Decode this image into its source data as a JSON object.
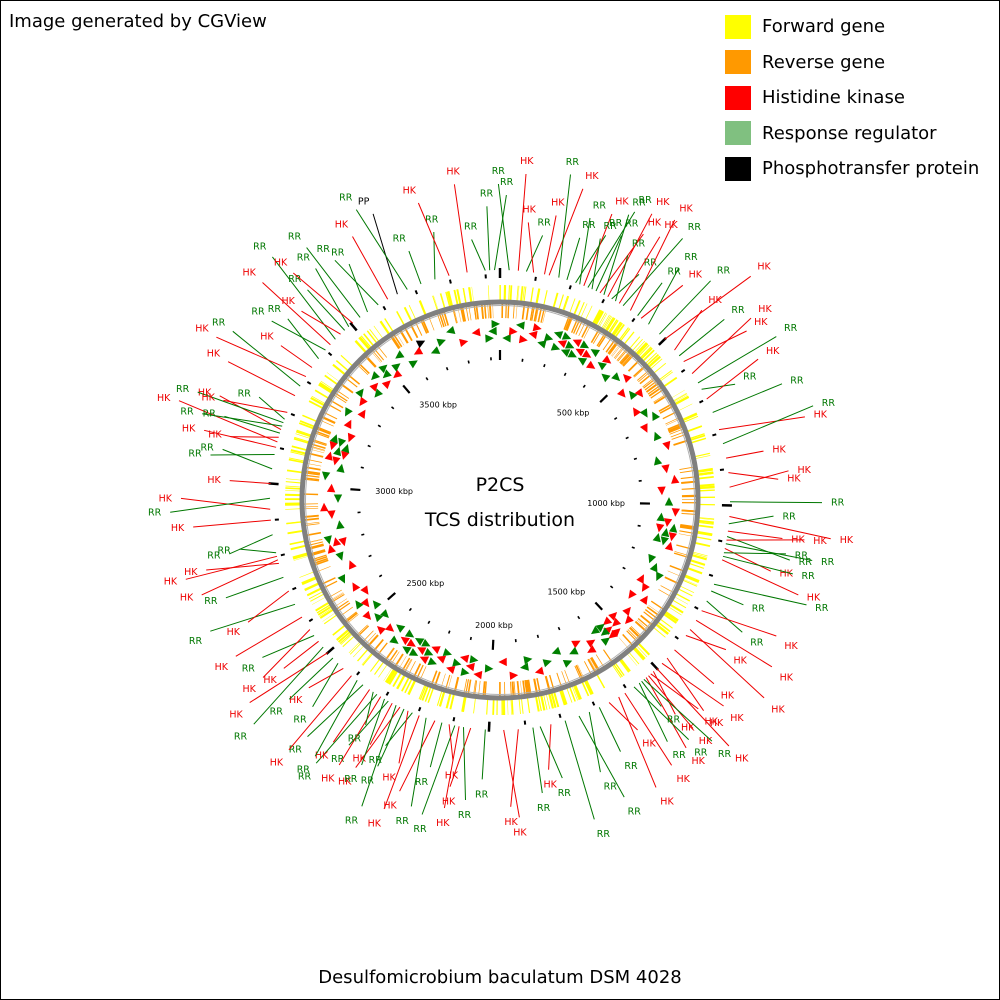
{
  "credit": "Image generated by CGView",
  "title": "Desulfomicrobium baculatum DSM 4028",
  "center": {
    "line1": "P2CS",
    "line2": "TCS distribution"
  },
  "legend": [
    {
      "label": "Forward gene",
      "color": "#ffff00"
    },
    {
      "label": "Reverse gene",
      "color": "#ff9900"
    },
    {
      "label": "Histidine kinase",
      "color": "#ff0000"
    },
    {
      "label": "Response regulator",
      "color": "#80c080"
    },
    {
      "label": "Phosphotransfer protein",
      "color": "#000000"
    }
  ],
  "label_colors": {
    "HK": "#ee0000",
    "RR": "#007700",
    "PP": "#000000"
  },
  "track_colors": {
    "forward": "#ffff00",
    "reverse": "#ff9900",
    "backbone": "#808080",
    "hk": "#ff0000",
    "rr": "#008000",
    "pp": "#000000"
  },
  "genome_kbp": 3940,
  "scale_ticks": [
    {
      "kbp": 500,
      "label": "500 kbp"
    },
    {
      "kbp": 1000,
      "label": "1000 kbp"
    },
    {
      "kbp": 1500,
      "label": "1500 kbp"
    },
    {
      "kbp": 2000,
      "label": "2000 kbp"
    },
    {
      "kbp": 2500,
      "label": "2500 kbp"
    },
    {
      "kbp": 3000,
      "label": "3000 kbp"
    },
    {
      "kbp": 3500,
      "label": "3500 kbp"
    }
  ],
  "features": [
    {
      "kbp": 3900,
      "type": "RR"
    },
    {
      "kbp": 3912,
      "type": "RR"
    },
    {
      "kbp": 3925,
      "type": "RR"
    },
    {
      "kbp": 25,
      "type": "RR"
    },
    {
      "kbp": 50,
      "type": "HK"
    },
    {
      "kbp": 72,
      "type": "RR"
    },
    {
      "kbp": 92,
      "type": "HK"
    },
    {
      "kbp": 122,
      "type": "HK"
    },
    {
      "kbp": 135,
      "type": "HK"
    },
    {
      "kbp": 162,
      "type": "RR"
    },
    {
      "kbp": 185,
      "type": "RR"
    },
    {
      "kbp": 210,
      "type": "RR"
    },
    {
      "kbp": 222,
      "type": "RR"
    },
    {
      "kbp": 234,
      "type": "HK"
    },
    {
      "kbp": 246,
      "type": "RR"
    },
    {
      "kbp": 258,
      "type": "RR"
    },
    {
      "kbp": 270,
      "type": "RR"
    },
    {
      "kbp": 282,
      "type": "HK"
    },
    {
      "kbp": 294,
      "type": "RR"
    },
    {
      "kbp": 306,
      "type": "HK"
    },
    {
      "kbp": 318,
      "type": "RR"
    },
    {
      "kbp": 330,
      "type": "RR"
    },
    {
      "kbp": 342,
      "type": "HK"
    },
    {
      "kbp": 354,
      "type": "RR"
    },
    {
      "kbp": 378,
      "type": "HK"
    },
    {
      "kbp": 402,
      "type": "RR"
    },
    {
      "kbp": 414,
      "type": "HK"
    },
    {
      "kbp": 440,
      "type": "RR"
    },
    {
      "kbp": 480,
      "type": "RR"
    },
    {
      "kbp": 500,
      "type": "HK"
    },
    {
      "kbp": 540,
      "type": "HK"
    },
    {
      "kbp": 560,
      "type": "RR"
    },
    {
      "kbp": 580,
      "type": "HK"
    },
    {
      "kbp": 620,
      "type": "HK"
    },
    {
      "kbp": 650,
      "type": "RR"
    },
    {
      "kbp": 670,
      "type": "RR"
    },
    {
      "kbp": 700,
      "type": "HK"
    },
    {
      "kbp": 740,
      "type": "RR"
    },
    {
      "kbp": 790,
      "type": "HK"
    },
    {
      "kbp": 830,
      "type": "RR"
    },
    {
      "kbp": 870,
      "type": "HK"
    },
    {
      "kbp": 910,
      "type": "HK"
    },
    {
      "kbp": 950,
      "type": "HK"
    },
    {
      "kbp": 990,
      "type": "RR"
    },
    {
      "kbp": 1030,
      "type": "HK"
    },
    {
      "kbp": 1050,
      "type": "RR"
    },
    {
      "kbp": 1070,
      "type": "HK"
    },
    {
      "kbp": 1085,
      "type": "RR"
    },
    {
      "kbp": 1095,
      "type": "HK"
    },
    {
      "kbp": 1105,
      "type": "RR"
    },
    {
      "kbp": 1118,
      "type": "HK"
    },
    {
      "kbp": 1130,
      "type": "RR"
    },
    {
      "kbp": 1140,
      "type": "RR"
    },
    {
      "kbp": 1150,
      "type": "HK"
    },
    {
      "kbp": 1220,
      "type": "RR"
    },
    {
      "kbp": 1240,
      "type": "RR"
    },
    {
      "kbp": 1270,
      "type": "RR"
    },
    {
      "kbp": 1300,
      "type": "HK"
    },
    {
      "kbp": 1330,
      "type": "HK"
    },
    {
      "kbp": 1360,
      "type": "HK"
    },
    {
      "kbp": 1380,
      "type": "HK"
    },
    {
      "kbp": 1430,
      "type": "HK"
    },
    {
      "kbp": 1460,
      "type": "HK"
    },
    {
      "kbp": 1480,
      "type": "HK"
    },
    {
      "kbp": 1500,
      "type": "HK"
    },
    {
      "kbp": 1512,
      "type": "HK"
    },
    {
      "kbp": 1522,
      "type": "HK"
    },
    {
      "kbp": 1530,
      "type": "HK"
    },
    {
      "kbp": 1538,
      "type": "HK"
    },
    {
      "kbp": 1546,
      "type": "RR"
    },
    {
      "kbp": 1554,
      "type": "RR"
    },
    {
      "kbp": 1562,
      "type": "RR"
    },
    {
      "kbp": 1580,
      "type": "RR"
    },
    {
      "kbp": 1610,
      "type": "HK"
    },
    {
      "kbp": 1630,
      "type": "HK"
    },
    {
      "kbp": 1660,
      "type": "HK"
    },
    {
      "kbp": 1690,
      "type": "RR"
    },
    {
      "kbp": 1720,
      "type": "RR"
    },
    {
      "kbp": 1750,
      "type": "RR"
    },
    {
      "kbp": 1790,
      "type": "RR"
    },
    {
      "kbp": 1830,
      "type": "HK"
    },
    {
      "kbp": 1860,
      "type": "RR"
    },
    {
      "kbp": 1880,
      "type": "RR"
    },
    {
      "kbp": 1920,
      "type": "HK"
    },
    {
      "kbp": 1960,
      "type": "HK"
    },
    {
      "kbp": 2010,
      "type": "RR"
    },
    {
      "kbp": 2050,
      "type": "HK"
    },
    {
      "kbp": 2070,
      "type": "RR"
    },
    {
      "kbp": 2082,
      "type": "HK"
    },
    {
      "kbp": 2094,
      "type": "RR"
    },
    {
      "kbp": 2110,
      "type": "HK"
    },
    {
      "kbp": 2130,
      "type": "RR"
    },
    {
      "kbp": 2150,
      "type": "HK"
    },
    {
      "kbp": 2175,
      "type": "RR"
    },
    {
      "kbp": 2195,
      "type": "HK"
    },
    {
      "kbp": 2215,
      "type": "RR"
    },
    {
      "kbp": 2228,
      "type": "HK"
    },
    {
      "kbp": 2240,
      "type": "RR"
    },
    {
      "kbp": 2252,
      "type": "HK"
    },
    {
      "kbp": 2264,
      "type": "RR"
    },
    {
      "kbp": 2276,
      "type": "HK"
    },
    {
      "kbp": 2288,
      "type": "RR"
    },
    {
      "kbp": 2300,
      "type": "RR"
    },
    {
      "kbp": 2312,
      "type": "HK"
    },
    {
      "kbp": 2324,
      "type": "RR"
    },
    {
      "kbp": 2336,
      "type": "RR"
    },
    {
      "kbp": 2348,
      "type": "HK"
    },
    {
      "kbp": 2370,
      "type": "RR"
    },
    {
      "kbp": 2390,
      "type": "RR"
    },
    {
      "kbp": 2410,
      "type": "HK"
    },
    {
      "kbp": 2440,
      "type": "HK"
    },
    {
      "kbp": 2460,
      "type": "RR"
    },
    {
      "kbp": 2480,
      "type": "RR"
    },
    {
      "kbp": 2500,
      "type": "HK"
    },
    {
      "kbp": 2520,
      "type": "RR"
    },
    {
      "kbp": 2540,
      "type": "HK"
    },
    {
      "kbp": 2560,
      "type": "RR"
    },
    {
      "kbp": 2580,
      "type": "HK"
    },
    {
      "kbp": 2620,
      "type": "HK"
    },
    {
      "kbp": 2660,
      "type": "RR"
    },
    {
      "kbp": 2700,
      "type": "HK"
    },
    {
      "kbp": 2740,
      "type": "RR"
    },
    {
      "kbp": 2780,
      "type": "HK"
    },
    {
      "kbp": 2790,
      "type": "HK"
    },
    {
      "kbp": 2800,
      "type": "HK"
    },
    {
      "kbp": 2810,
      "type": "RR"
    },
    {
      "kbp": 2860,
      "type": "RR"
    },
    {
      "kbp": 2900,
      "type": "HK"
    },
    {
      "kbp": 2930,
      "type": "HK"
    },
    {
      "kbp": 2960,
      "type": "RR"
    },
    {
      "kbp": 3000,
      "type": "HK"
    },
    {
      "kbp": 3040,
      "type": "RR"
    },
    {
      "kbp": 3080,
      "type": "RR"
    },
    {
      "kbp": 3100,
      "type": "HK"
    },
    {
      "kbp": 3115,
      "type": "HK"
    },
    {
      "kbp": 3128,
      "type": "HK"
    },
    {
      "kbp": 3140,
      "type": "RR"
    },
    {
      "kbp": 3150,
      "type": "HK"
    },
    {
      "kbp": 3160,
      "type": "RR"
    },
    {
      "kbp": 3170,
      "type": "RR"
    },
    {
      "kbp": 3180,
      "type": "RR"
    },
    {
      "kbp": 3200,
      "type": "HK"
    },
    {
      "kbp": 3250,
      "type": "HK"
    },
    {
      "kbp": 3280,
      "type": "RR"
    },
    {
      "kbp": 3310,
      "type": "HK"
    },
    {
      "kbp": 3340,
      "type": "HK"
    },
    {
      "kbp": 3370,
      "type": "RR"
    },
    {
      "kbp": 3400,
      "type": "RR"
    },
    {
      "kbp": 3420,
      "type": "HK"
    },
    {
      "kbp": 3440,
      "type": "RR"
    },
    {
      "kbp": 3460,
      "type": "HK"
    },
    {
      "kbp": 3475,
      "type": "RR"
    },
    {
      "kbp": 3490,
      "type": "RR"
    },
    {
      "kbp": 3505,
      "type": "HK"
    },
    {
      "kbp": 3530,
      "type": "RR"
    },
    {
      "kbp": 3555,
      "type": "RR"
    },
    {
      "kbp": 3590,
      "type": "RR"
    },
    {
      "kbp": 3620,
      "type": "HK"
    },
    {
      "kbp": 3650,
      "type": "PP"
    },
    {
      "kbp": 3680,
      "type": "RR"
    },
    {
      "kbp": 3720,
      "type": "RR"
    },
    {
      "kbp": 3760,
      "type": "RR"
    },
    {
      "kbp": 3800,
      "type": "HK"
    },
    {
      "kbp": 3850,
      "type": "HK"
    }
  ]
}
